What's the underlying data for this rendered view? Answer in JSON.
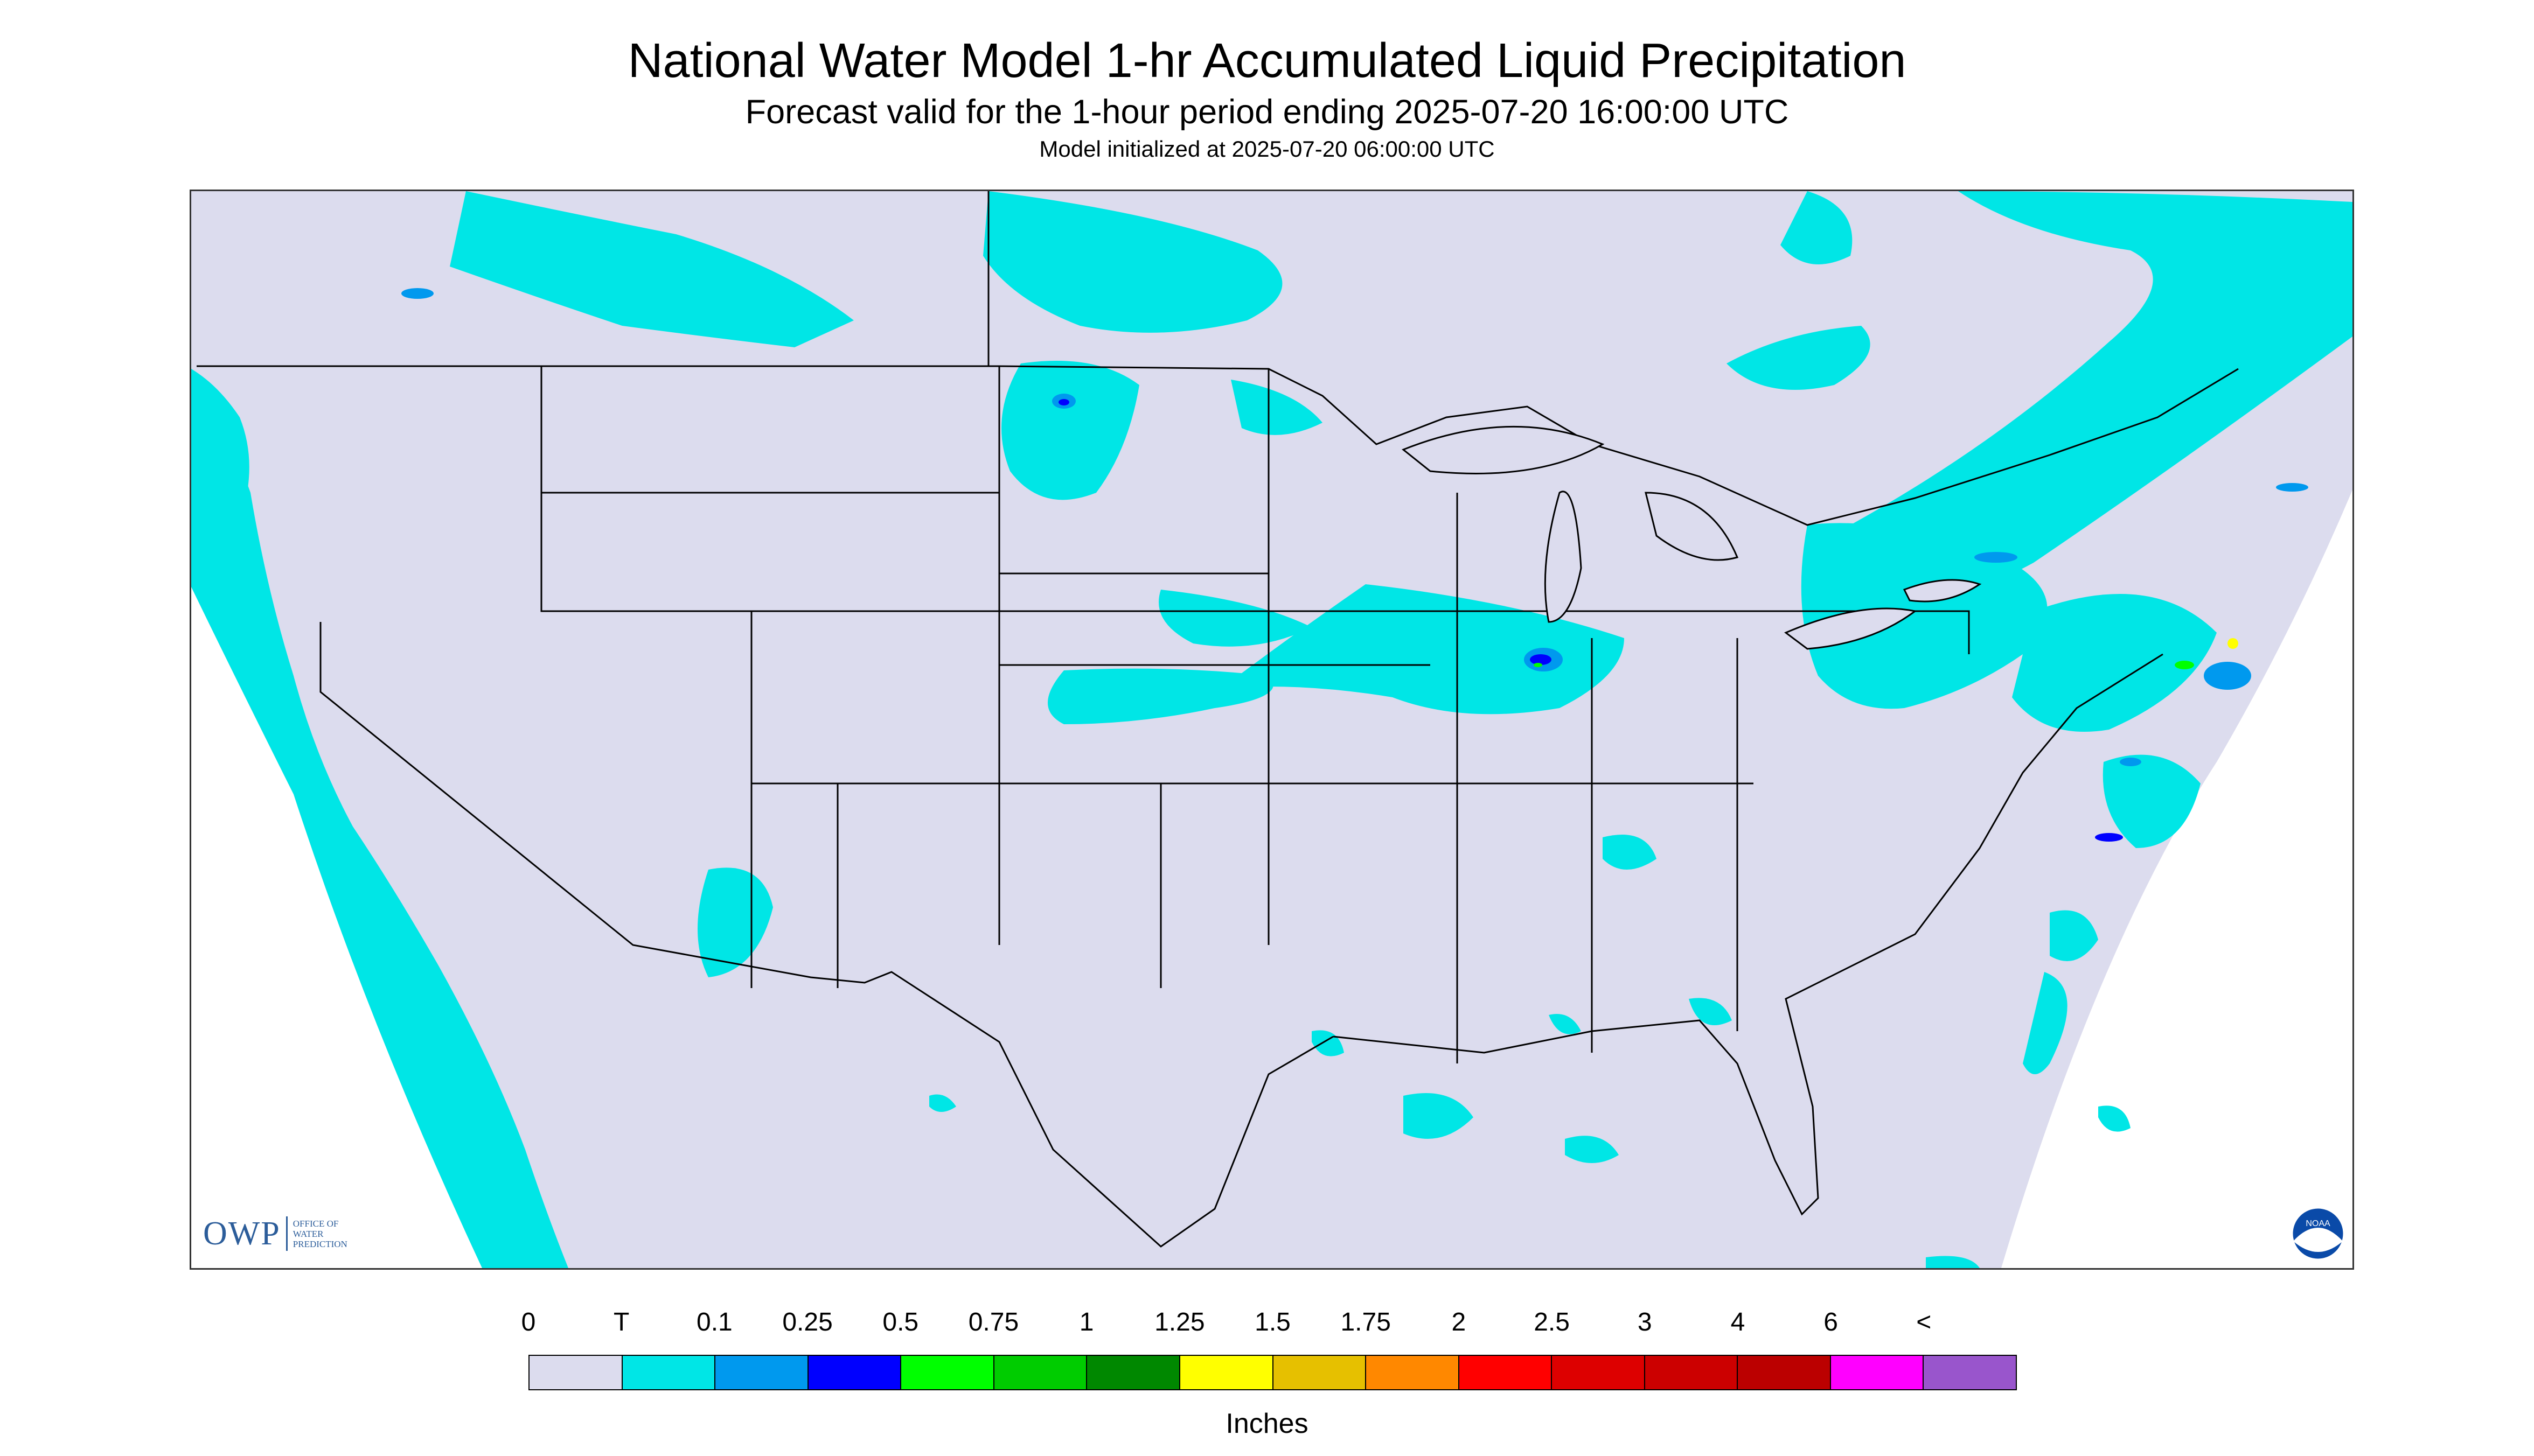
{
  "title": "National Water Model 1-hr Accumulated Liquid Precipitation",
  "subtitle": "Forecast valid for the 1-hour period ending 2025-07-20 16:00:00 UTC",
  "init_line": "Model initialized at 2025-07-20 06:00:00 UTC",
  "logos": {
    "owp_big": "OWP",
    "owp_small": [
      "OFFICE OF",
      "WATER",
      "PREDICTION"
    ],
    "noaa_text": "NOAA"
  },
  "map": {
    "background_color": "#dcdcee",
    "outside_domain_color": "#ffffff",
    "border_color": "#000000"
  },
  "legend": {
    "labels": [
      "0",
      "T",
      "0.1",
      "0.25",
      "0.5",
      "0.75",
      "1",
      "1.25",
      "1.5",
      "1.75",
      "2",
      "2.5",
      "3",
      "4",
      "6",
      "<"
    ],
    "colors": [
      "#dcdcee",
      "#00e6e6",
      "#0099ee",
      "#0000ff",
      "#00ff00",
      "#00cc00",
      "#008800",
      "#ffff00",
      "#e6c000",
      "#ff8800",
      "#ff0000",
      "#dd0000",
      "#cc0000",
      "#bb0000",
      "#ff00ff",
      "#9955cc"
    ],
    "units": "Inches"
  }
}
